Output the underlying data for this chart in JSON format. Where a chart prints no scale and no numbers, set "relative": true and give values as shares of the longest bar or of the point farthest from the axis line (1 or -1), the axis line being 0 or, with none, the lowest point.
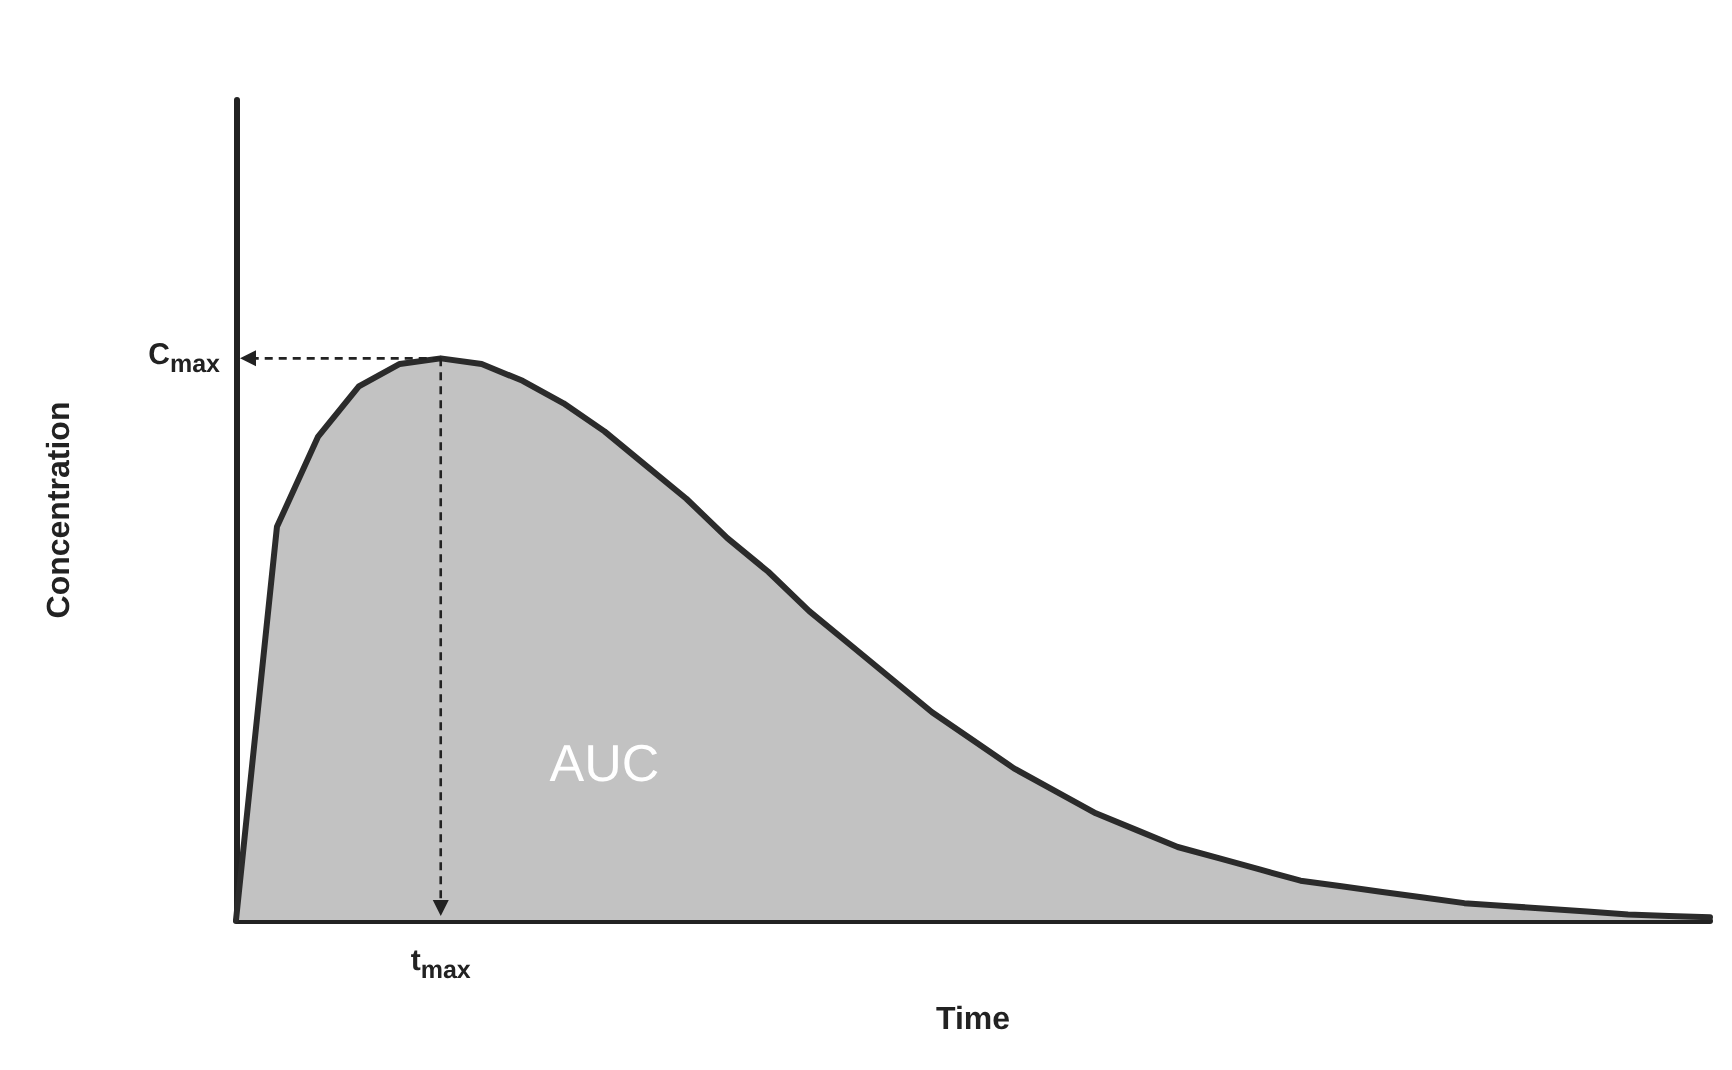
{
  "chart_data": {
    "type": "area",
    "relative": true,
    "xlabel": "Time",
    "ylabel": "Concentration",
    "categories": [
      null,
      null,
      null,
      null,
      null,
      null,
      null,
      null,
      null,
      null,
      null,
      null,
      null,
      null,
      null,
      null,
      null,
      null,
      null,
      null,
      null,
      null,
      null,
      null,
      null,
      null,
      null,
      null,
      null,
      null,
      null,
      null,
      null,
      null,
      null,
      null,
      null
    ],
    "series": [
      {
        "color": "#2b2b2b",
        "values": [
          0,
          0.7,
          0.86,
          0.95,
          0.99,
          1,
          0.99,
          0.96,
          0.92,
          0.87,
          0.81,
          0.75,
          0.68,
          0.62,
          0.55,
          0.49,
          0.43,
          0.37,
          0.32,
          0.27,
          0.23,
          0.19,
          0.16,
          0.13,
          0.11,
          0.09,
          0.07,
          0.06,
          0.05,
          0.04,
          0.03,
          0.025,
          0.02,
          0.015,
          0.01,
          0.007,
          0.005
        ]
      }
    ],
    "annotations": [
      "C$_{max}$",
      "t$_{max}$",
      "AUC"
    ],
    "grid": false
  }
}
